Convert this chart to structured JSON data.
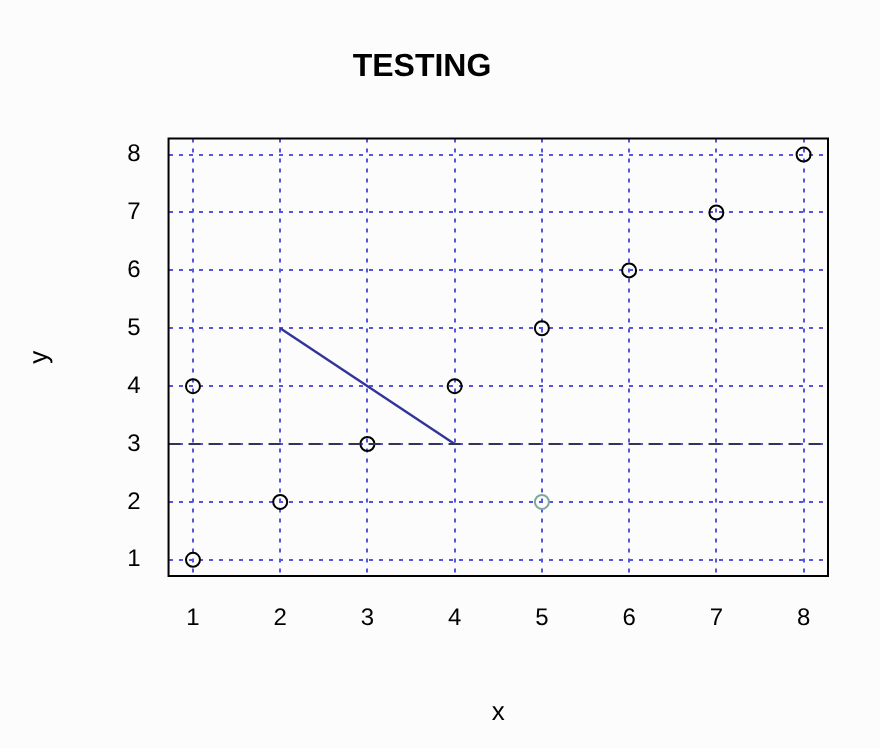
{
  "chart_data": {
    "type": "scatter",
    "title": "TESTING",
    "xlabel": "x",
    "ylabel": "y",
    "xlim": [
      0.72,
      8.28
    ],
    "ylim": [
      0.72,
      8.28
    ],
    "xticks": [
      1,
      2,
      3,
      4,
      5,
      6,
      7,
      8
    ],
    "yticks": [
      1,
      2,
      3,
      4,
      5,
      6,
      7,
      8
    ],
    "grid": true,
    "legend": false,
    "marker": "circle",
    "series": [
      {
        "color": "#000000",
        "x": [
          1,
          2,
          3,
          4,
          5,
          6,
          7,
          8,
          1
        ],
        "values": [
          1,
          2,
          3,
          4,
          5,
          6,
          7,
          8,
          4
        ]
      },
      {
        "color": "#7fa898",
        "x": [
          5
        ],
        "values": [
          2
        ]
      },
      {
        "type": "line",
        "color": "#33339a",
        "x": [
          2,
          4
        ],
        "values": [
          5,
          3
        ],
        "marker": "none"
      }
    ],
    "ref_lines": [
      {
        "axis": "y",
        "value": 3,
        "color": "#333355",
        "line_style": "dashed"
      }
    ]
  }
}
